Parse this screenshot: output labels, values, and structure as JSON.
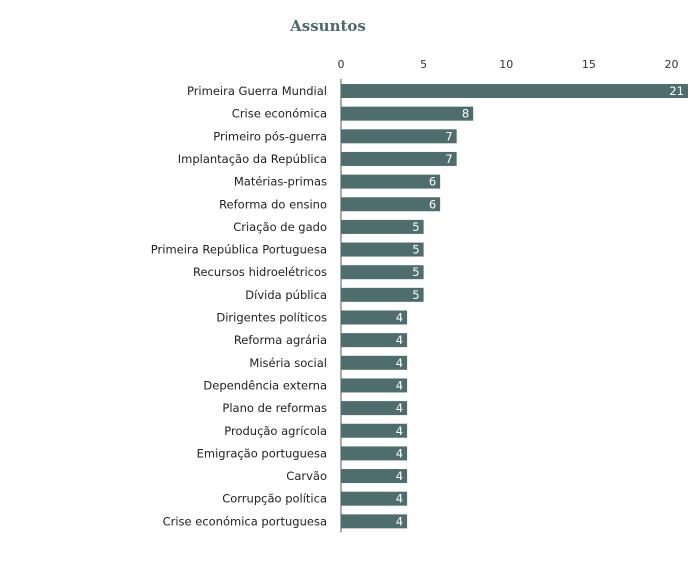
{
  "chart_data": {
    "type": "bar",
    "orientation": "horizontal",
    "title": "Assuntos",
    "xlabel": "",
    "ylabel": "",
    "xlim": [
      0,
      21
    ],
    "ticks": [
      "0",
      "5",
      "10",
      "15",
      "20"
    ],
    "tick_values": [
      0,
      5,
      10,
      15,
      20
    ],
    "axis_position": "top",
    "grid": false,
    "bar_color": "#4f6d6c",
    "categories": [
      "Primeira Guerra Mundial",
      "Crise económica",
      "Primeiro pós-guerra",
      "Implantação da República",
      "Matérias-primas",
      "Reforma do ensino",
      "Criação de gado",
      "Primeira República Portuguesa",
      "Recursos hidroelétricos",
      "Dívida pública",
      "Dirigentes políticos",
      "Reforma agrária",
      "Miséria social",
      "Dependência externa",
      "Plano de reformas",
      "Produção agrícola",
      "Emigração portuguesa",
      "Carvão",
      "Corrupção política",
      "Crise económica portuguesa"
    ],
    "values": [
      21,
      8,
      7,
      7,
      6,
      6,
      5,
      5,
      5,
      5,
      4,
      4,
      4,
      4,
      4,
      4,
      4,
      4,
      4,
      4
    ]
  }
}
